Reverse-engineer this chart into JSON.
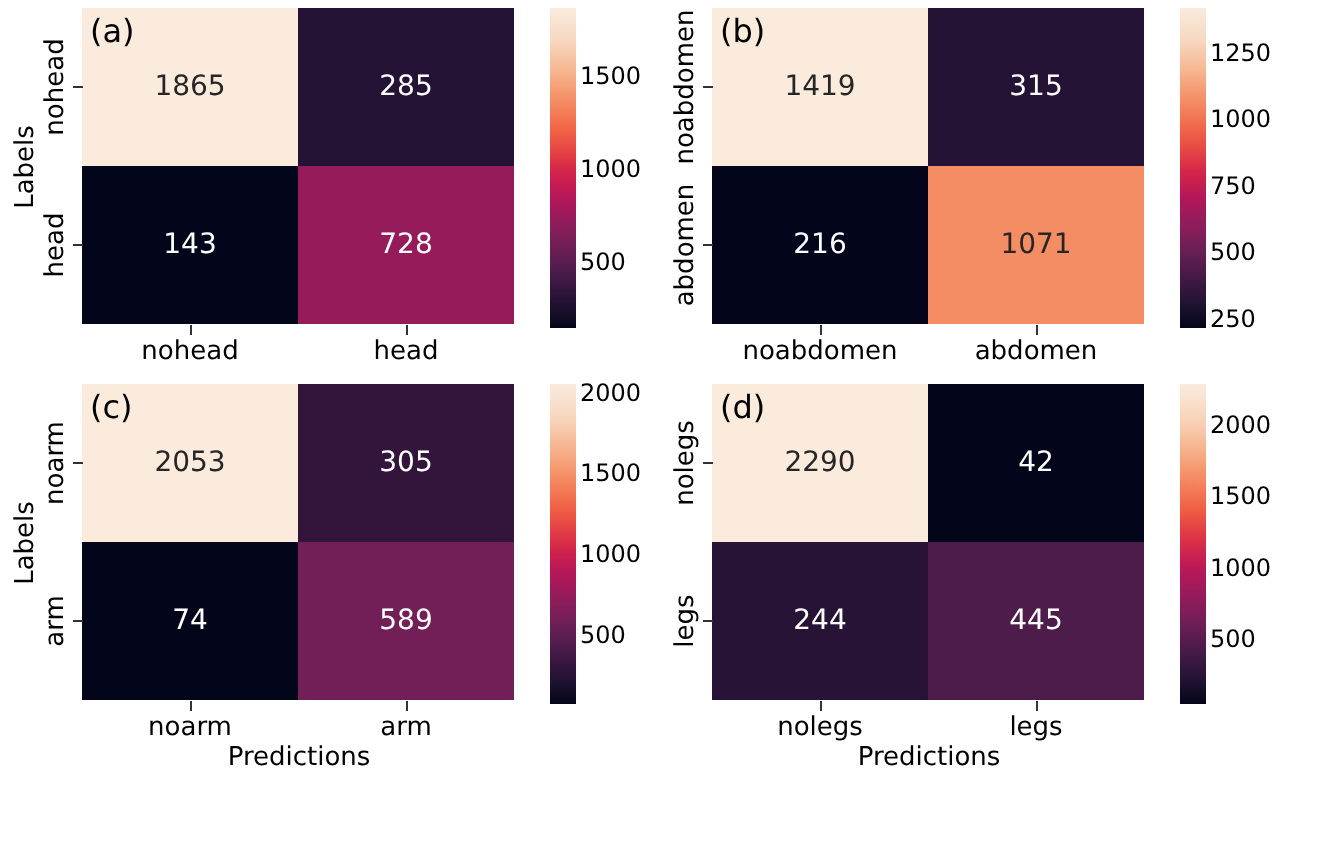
{
  "chart_data": [
    {
      "type": "heatmap",
      "annotations": [
        "(a)"
      ],
      "ylabel": "Labels",
      "categories": [
        "nohead",
        "head"
      ],
      "y_categories": [
        "nohead",
        "head"
      ],
      "cells": [
        [
          1865,
          285
        ],
        [
          143,
          728
        ]
      ],
      "data_labels": true,
      "clim": [
        143,
        1865
      ],
      "cticks": [
        500,
        1000,
        1500
      ]
    },
    {
      "type": "heatmap",
      "annotations": [
        "(b)"
      ],
      "categories": [
        "noabdomen",
        "abdomen"
      ],
      "y_categories": [
        "noabdomen",
        "abdomen"
      ],
      "cells": [
        [
          1419,
          315
        ],
        [
          216,
          1071
        ]
      ],
      "data_labels": true,
      "clim": [
        216,
        1419
      ],
      "cticks": [
        250,
        500,
        750,
        1000,
        1250
      ]
    },
    {
      "type": "heatmap",
      "annotations": [
        "(c)"
      ],
      "xlabel": "Predictions",
      "ylabel": "Labels",
      "categories": [
        "noarm",
        "arm"
      ],
      "y_categories": [
        "noarm",
        "arm"
      ],
      "cells": [
        [
          2053,
          305
        ],
        [
          74,
          589
        ]
      ],
      "data_labels": true,
      "clim": [
        74,
        2053
      ],
      "cticks": [
        500,
        1000,
        1500,
        2000
      ]
    },
    {
      "type": "heatmap",
      "annotations": [
        "(d)"
      ],
      "xlabel": "Predictions",
      "categories": [
        "nolegs",
        "legs"
      ],
      "y_categories": [
        "nolegs",
        "legs"
      ],
      "cells": [
        [
          2290,
          42
        ],
        [
          244,
          445
        ]
      ],
      "data_labels": true,
      "clim": [
        42,
        2290
      ],
      "cticks": [
        500,
        1000,
        1500,
        2000
      ]
    }
  ]
}
